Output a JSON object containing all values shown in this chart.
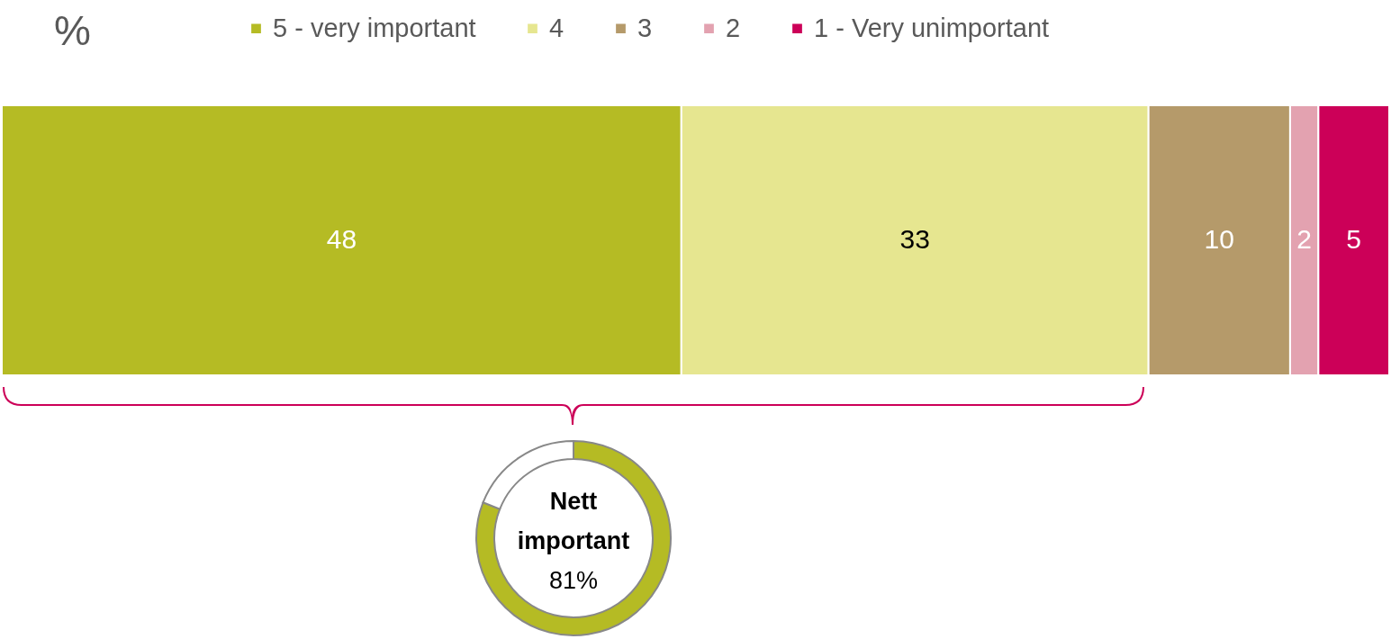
{
  "chart_data": [
    {
      "type": "bar",
      "orientation": "horizontal",
      "stacked": true,
      "title": "%",
      "categories": [
        null
      ],
      "legend": "top",
      "data_labels": true,
      "xlim": [
        0,
        98
      ],
      "series": [
        {
          "name": "5 - very important",
          "color": "#b5bb24",
          "values": [
            48
          ]
        },
        {
          "name": "4",
          "color": "#e6e690",
          "values": [
            33
          ]
        },
        {
          "name": "3",
          "color": "#b59a6a",
          "values": [
            10
          ]
        },
        {
          "name": "2",
          "color": "#e3a2b0",
          "values": [
            2
          ]
        },
        {
          "name": "1 - Very unimportant",
          "color": "#cc0058",
          "values": [
            5
          ]
        }
      ]
    },
    {
      "type": "donut",
      "categories": [
        null,
        null
      ],
      "values": [
        81,
        19
      ],
      "colors": [
        "#b5bb24",
        "#ffffff"
      ],
      "annotations": [
        "Nett important"
      ],
      "value_labels": [
        "81%",
        null
      ]
    }
  ]
}
